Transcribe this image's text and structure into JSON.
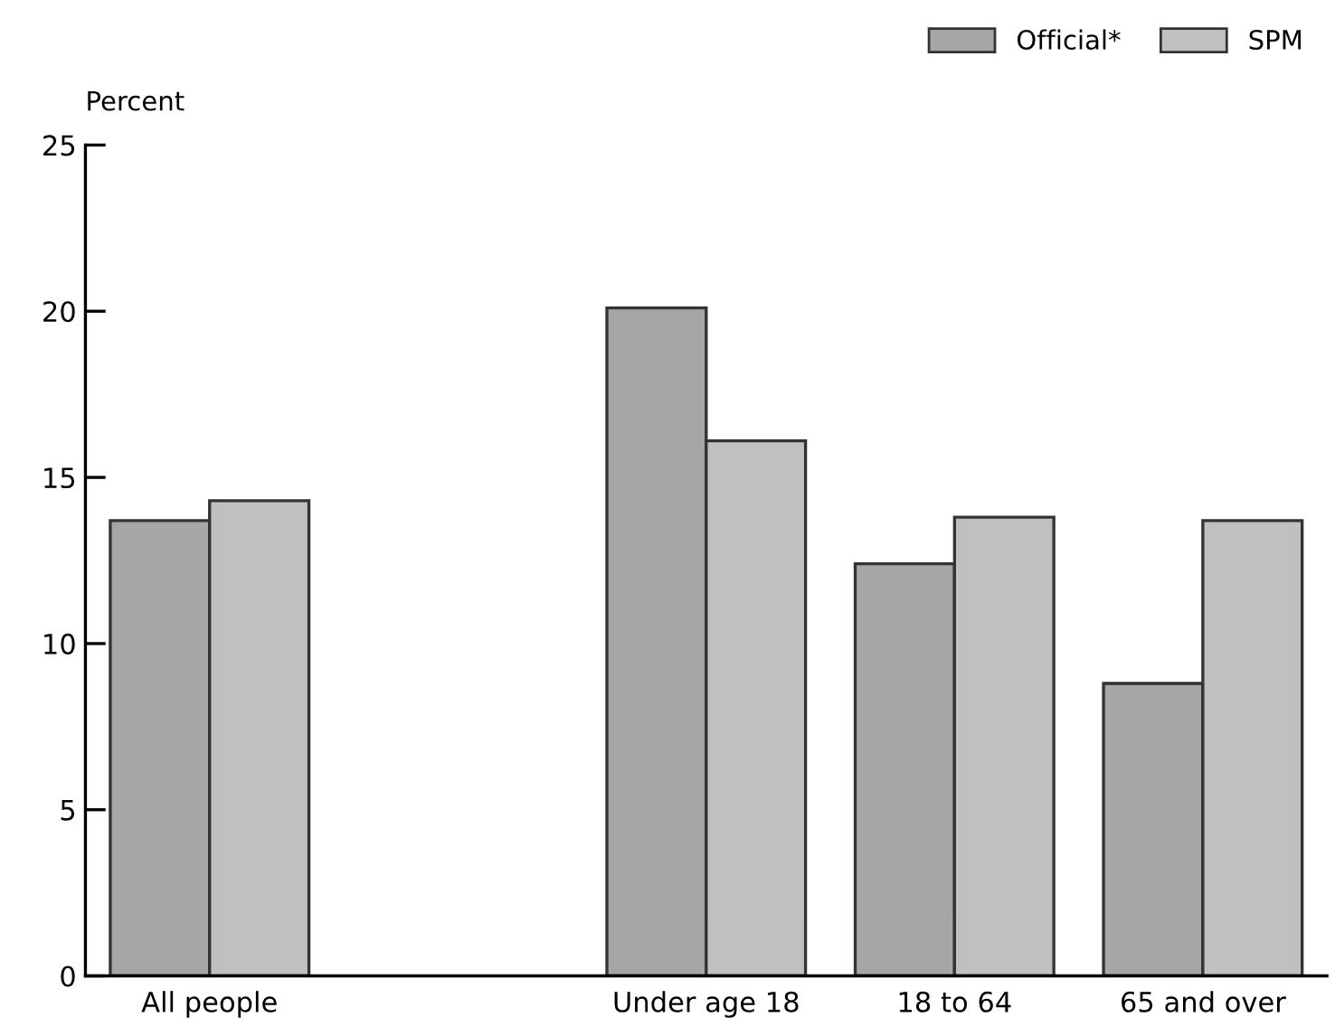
{
  "chart_data": {
    "type": "bar",
    "ylabel": "Percent",
    "categories": [
      "All people",
      null,
      "Under age 18",
      "18 to 64",
      "65 and over"
    ],
    "series": [
      {
        "name": "Official*",
        "color": "#a6a6a6",
        "values": [
          13.7,
          null,
          20.1,
          12.4,
          8.8
        ]
      },
      {
        "name": "SPM",
        "color": "#c0c0c0",
        "values": [
          14.3,
          null,
          16.1,
          13.8,
          13.7
        ]
      }
    ],
    "ylim": [
      0,
      25
    ],
    "yticks": [
      0,
      5,
      10,
      15,
      20,
      25
    ],
    "grid": false,
    "legend": "top right"
  }
}
